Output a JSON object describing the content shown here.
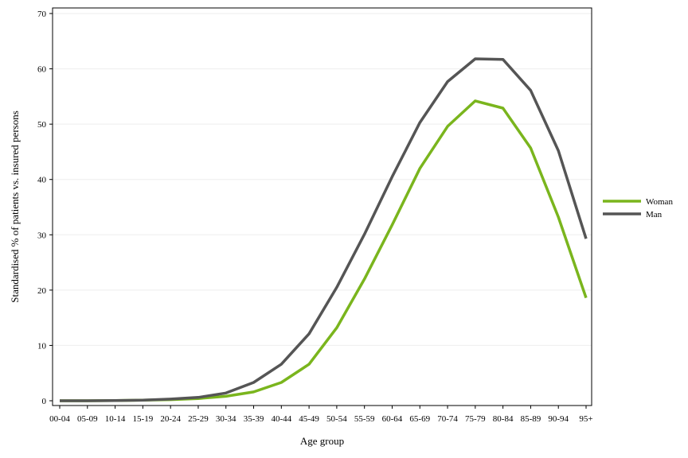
{
  "chart_data": {
    "type": "line",
    "title": "",
    "xlabel": "Age group",
    "ylabel": "Standardised % of patients vs. insured persons",
    "categories": [
      "00-04",
      "05-09",
      "10-14",
      "15-19",
      "20-24",
      "25-29",
      "30-34",
      "35-39",
      "40-44",
      "45-49",
      "50-54",
      "55-59",
      "60-64",
      "65-69",
      "70-74",
      "75-79",
      "80-84",
      "85-89",
      "90-94",
      "95+"
    ],
    "ylim": [
      0,
      70
    ],
    "yticks": [
      0,
      10,
      20,
      30,
      40,
      50,
      60,
      70
    ],
    "grid": true,
    "legend_position": "right",
    "series": [
      {
        "name": "Woman",
        "color": "#7ab51d",
        "values": [
          0.0,
          0.0,
          0.05,
          0.1,
          0.2,
          0.4,
          0.8,
          1.6,
          3.3,
          6.6,
          13.2,
          22.0,
          31.8,
          42.0,
          49.6,
          54.2,
          52.9,
          45.7,
          33.2,
          18.6
        ]
      },
      {
        "name": "Man",
        "color": "#555555",
        "values": [
          0.0,
          0.0,
          0.05,
          0.1,
          0.3,
          0.6,
          1.4,
          3.3,
          6.6,
          12.1,
          20.5,
          30.1,
          40.5,
          50.3,
          57.7,
          61.8,
          61.7,
          56.1,
          45.2,
          29.3
        ]
      }
    ]
  }
}
